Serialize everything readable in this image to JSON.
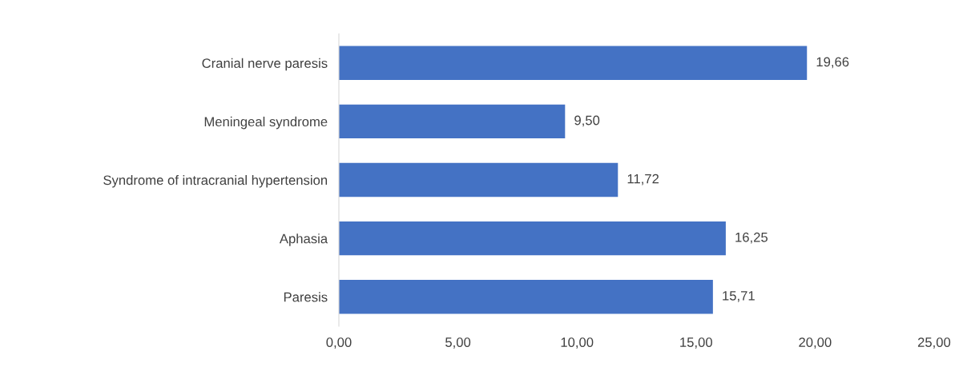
{
  "chart_data": {
    "type": "bar",
    "orientation": "horizontal",
    "categories": [
      "Cranial nerve paresis",
      "Meningeal syndrome",
      "Syndrome of intracranial hypertension",
      "Aphasia",
      "Paresis"
    ],
    "values": [
      19.66,
      9.5,
      11.72,
      16.25,
      15.71
    ],
    "value_labels": [
      "19,66",
      "9,50",
      "11,72",
      "16,25",
      "15,71"
    ],
    "color": "#4472c4",
    "xlim": [
      0,
      25
    ],
    "xticks": [
      {
        "value": 0,
        "label": "0,00"
      },
      {
        "value": 5,
        "label": "5,00"
      },
      {
        "value": 10,
        "label": "10,00"
      },
      {
        "value": 15,
        "label": "15,00"
      },
      {
        "value": 20,
        "label": "20,00"
      },
      {
        "value": 25,
        "label": "25,00"
      }
    ]
  }
}
